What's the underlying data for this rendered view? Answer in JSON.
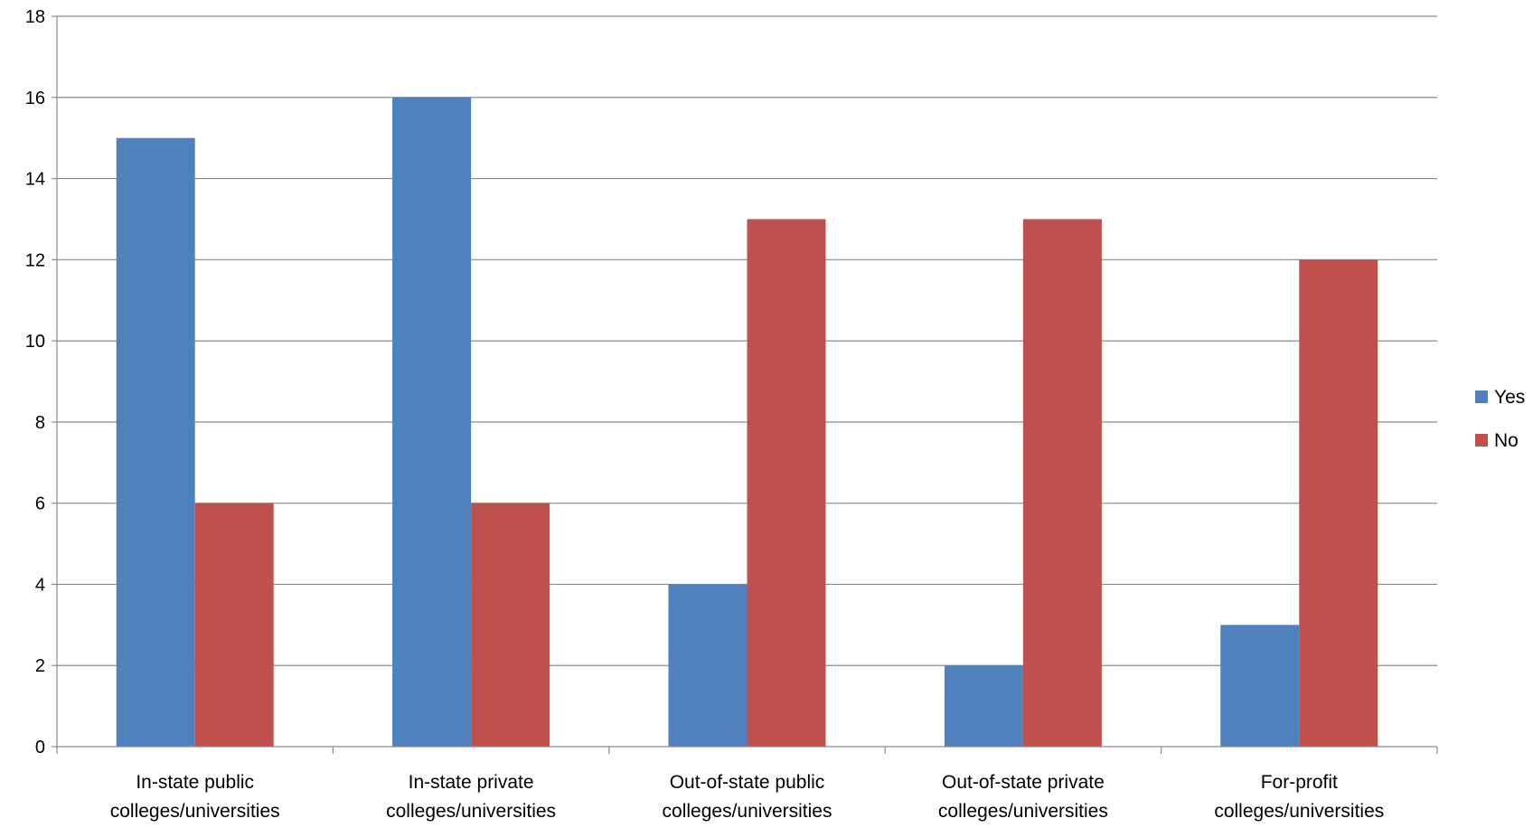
{
  "chart_data": {
    "type": "bar",
    "title": "",
    "xlabel": "",
    "ylabel": "",
    "ylim": [
      0,
      18
    ],
    "yticks": [
      0,
      2,
      4,
      6,
      8,
      10,
      12,
      14,
      16,
      18
    ],
    "grid": true,
    "legend_position": "right",
    "categories": [
      [
        "In-state public",
        "colleges/universities"
      ],
      [
        "In-state private",
        "colleges/universities"
      ],
      [
        "Out-of-state public",
        "colleges/universities"
      ],
      [
        "Out-of-state private",
        "colleges/universities"
      ],
      [
        "For-profit",
        "colleges/universities"
      ]
    ],
    "series": [
      {
        "name": "Yes",
        "color": "#4F81BD",
        "values": [
          15,
          16,
          4,
          2,
          3
        ]
      },
      {
        "name": "No",
        "color": "#C0504D",
        "values": [
          6,
          6,
          13,
          13,
          12
        ]
      }
    ]
  }
}
